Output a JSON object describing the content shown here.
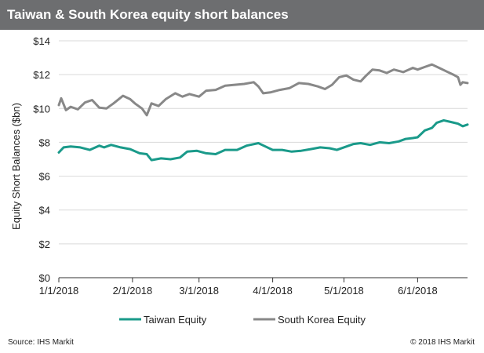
{
  "header": {
    "title": "Taiwan & South Korea equity short balances"
  },
  "footer": {
    "source": "Source: IHS Markit",
    "copyright": "© 2018 IHS Markit"
  },
  "colors": {
    "taiwan": "#1a9a8a",
    "south_korea": "#888888",
    "title_bar": "#6d6e70"
  },
  "chart_data": {
    "type": "line",
    "title": "Taiwan & South Korea equity short balances",
    "ylabel": "Equity Short Balances ($bn)",
    "xlabel": "",
    "ylim": [
      0,
      14
    ],
    "y_ticks": [
      0,
      2,
      4,
      6,
      8,
      10,
      12,
      14
    ],
    "y_tick_labels": [
      "$0",
      "$2",
      "$4",
      "$6",
      "$8",
      "$10",
      "$12",
      "$14"
    ],
    "x_ticks": [
      "2018-01-01",
      "2018-02-01",
      "2018-03-01",
      "2018-04-01",
      "2018-05-01",
      "2018-06-01"
    ],
    "x_tick_labels": [
      "1/1/2018",
      "2/1/2018",
      "3/1/2018",
      "4/1/2018",
      "5/1/2018",
      "6/1/2018"
    ],
    "xlim": [
      "2018-01-01",
      "2018-06-22"
    ],
    "grid": "horizontal",
    "legend": "bottom",
    "series": [
      {
        "name": "Taiwan Equity",
        "color": "#1a9a8a",
        "points": [
          [
            "2018-01-01",
            7.4
          ],
          [
            "2018-01-03",
            7.7
          ],
          [
            "2018-01-06",
            7.75
          ],
          [
            "2018-01-10",
            7.7
          ],
          [
            "2018-01-14",
            7.55
          ],
          [
            "2018-01-18",
            7.8
          ],
          [
            "2018-01-20",
            7.7
          ],
          [
            "2018-01-23",
            7.85
          ],
          [
            "2018-01-27",
            7.7
          ],
          [
            "2018-01-31",
            7.6
          ],
          [
            "2018-02-04",
            7.35
          ],
          [
            "2018-02-07",
            7.3
          ],
          [
            "2018-02-09",
            6.95
          ],
          [
            "2018-02-13",
            7.05
          ],
          [
            "2018-02-17",
            7.0
          ],
          [
            "2018-02-21",
            7.1
          ],
          [
            "2018-02-24",
            7.45
          ],
          [
            "2018-02-28",
            7.5
          ],
          [
            "2018-03-04",
            7.35
          ],
          [
            "2018-03-08",
            7.3
          ],
          [
            "2018-03-12",
            7.55
          ],
          [
            "2018-03-17",
            7.55
          ],
          [
            "2018-03-21",
            7.8
          ],
          [
            "2018-03-26",
            7.95
          ],
          [
            "2018-03-29",
            7.75
          ],
          [
            "2018-04-01",
            7.55
          ],
          [
            "2018-04-05",
            7.55
          ],
          [
            "2018-04-09",
            7.45
          ],
          [
            "2018-04-13",
            7.5
          ],
          [
            "2018-04-17",
            7.6
          ],
          [
            "2018-04-21",
            7.7
          ],
          [
            "2018-04-25",
            7.65
          ],
          [
            "2018-04-28",
            7.55
          ],
          [
            "2018-05-02",
            7.75
          ],
          [
            "2018-05-05",
            7.9
          ],
          [
            "2018-05-08",
            7.95
          ],
          [
            "2018-05-12",
            7.85
          ],
          [
            "2018-05-16",
            8.0
          ],
          [
            "2018-05-20",
            7.95
          ],
          [
            "2018-05-24",
            8.05
          ],
          [
            "2018-05-27",
            8.2
          ],
          [
            "2018-05-30",
            8.25
          ],
          [
            "2018-06-01",
            8.3
          ],
          [
            "2018-06-04",
            8.7
          ],
          [
            "2018-06-07",
            8.85
          ],
          [
            "2018-06-09",
            9.15
          ],
          [
            "2018-06-12",
            9.3
          ],
          [
            "2018-06-15",
            9.2
          ],
          [
            "2018-06-18",
            9.1
          ],
          [
            "2018-06-20",
            8.95
          ],
          [
            "2018-06-22",
            9.05
          ]
        ]
      },
      {
        "name": "South Korea Equity",
        "color": "#888888",
        "points": [
          [
            "2018-01-01",
            10.2
          ],
          [
            "2018-01-02",
            10.6
          ],
          [
            "2018-01-04",
            9.9
          ],
          [
            "2018-01-06",
            10.1
          ],
          [
            "2018-01-09",
            9.95
          ],
          [
            "2018-01-12",
            10.35
          ],
          [
            "2018-01-15",
            10.5
          ],
          [
            "2018-01-18",
            10.05
          ],
          [
            "2018-01-21",
            10.0
          ],
          [
            "2018-01-24",
            10.3
          ],
          [
            "2018-01-28",
            10.75
          ],
          [
            "2018-01-31",
            10.55
          ],
          [
            "2018-02-02",
            10.3
          ],
          [
            "2018-02-05",
            10.0
          ],
          [
            "2018-02-07",
            9.6
          ],
          [
            "2018-02-09",
            10.3
          ],
          [
            "2018-02-12",
            10.15
          ],
          [
            "2018-02-15",
            10.55
          ],
          [
            "2018-02-19",
            10.9
          ],
          [
            "2018-02-22",
            10.7
          ],
          [
            "2018-02-25",
            10.85
          ],
          [
            "2018-03-01",
            10.7
          ],
          [
            "2018-03-04",
            11.05
          ],
          [
            "2018-03-08",
            11.1
          ],
          [
            "2018-03-12",
            11.35
          ],
          [
            "2018-03-16",
            11.4
          ],
          [
            "2018-03-20",
            11.45
          ],
          [
            "2018-03-24",
            11.55
          ],
          [
            "2018-03-26",
            11.3
          ],
          [
            "2018-03-28",
            10.9
          ],
          [
            "2018-03-31",
            10.95
          ],
          [
            "2018-04-04",
            11.1
          ],
          [
            "2018-04-08",
            11.2
          ],
          [
            "2018-04-12",
            11.5
          ],
          [
            "2018-04-16",
            11.45
          ],
          [
            "2018-04-20",
            11.3
          ],
          [
            "2018-04-23",
            11.15
          ],
          [
            "2018-04-26",
            11.4
          ],
          [
            "2018-04-29",
            11.85
          ],
          [
            "2018-05-02",
            11.95
          ],
          [
            "2018-05-05",
            11.7
          ],
          [
            "2018-05-08",
            11.6
          ],
          [
            "2018-05-10",
            11.9
          ],
          [
            "2018-05-13",
            12.3
          ],
          [
            "2018-05-16",
            12.25
          ],
          [
            "2018-05-19",
            12.1
          ],
          [
            "2018-05-22",
            12.3
          ],
          [
            "2018-05-26",
            12.15
          ],
          [
            "2018-05-30",
            12.4
          ],
          [
            "2018-06-01",
            12.3
          ],
          [
            "2018-06-04",
            12.45
          ],
          [
            "2018-06-07",
            12.6
          ],
          [
            "2018-06-10",
            12.4
          ],
          [
            "2018-06-13",
            12.2
          ],
          [
            "2018-06-16",
            12.0
          ],
          [
            "2018-06-18",
            11.85
          ],
          [
            "2018-06-19",
            11.4
          ],
          [
            "2018-06-20",
            11.55
          ],
          [
            "2018-06-22",
            11.5
          ]
        ]
      }
    ]
  }
}
